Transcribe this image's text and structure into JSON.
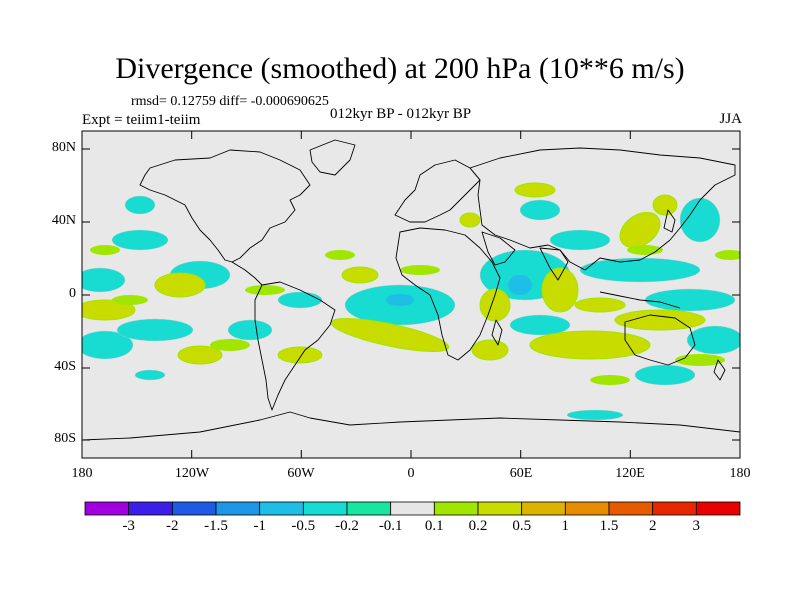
{
  "title": "Divergence (smoothed) at 200 hPa (10**6 m/s)",
  "stats_line": "rmsd= 0.12759 diff= -0.000690625",
  "experiment": "Expt = teiim1-teiim",
  "period": "012kyr BP - 012kyr BP",
  "season": "JJA",
  "lat_ticks": [
    "80N",
    "40N",
    "0",
    "40S",
    "80S"
  ],
  "lon_ticks": [
    "180",
    "120W",
    "60W",
    "0",
    "60E",
    "120E",
    "180"
  ],
  "colorbar": {
    "labels": [
      "-3",
      "-2",
      "-1.5",
      "-1",
      "-0.5",
      "-0.2",
      "-0.1",
      "0.1",
      "0.2",
      "0.5",
      "1",
      "1.5",
      "2",
      "3"
    ],
    "colors": [
      "#a000e0",
      "#3c1ee8",
      "#1e5ae6",
      "#1e96e6",
      "#1ebee6",
      "#18dcd2",
      "#18e6a0",
      "#e6e6e6",
      "#a0e600",
      "#c8dc00",
      "#dcb400",
      "#e68c00",
      "#e65a00",
      "#e62800",
      "#e60000"
    ]
  },
  "colors": {
    "background": "#ffffff",
    "map_fill": "#e8e8e8",
    "coast": "#000000"
  }
}
